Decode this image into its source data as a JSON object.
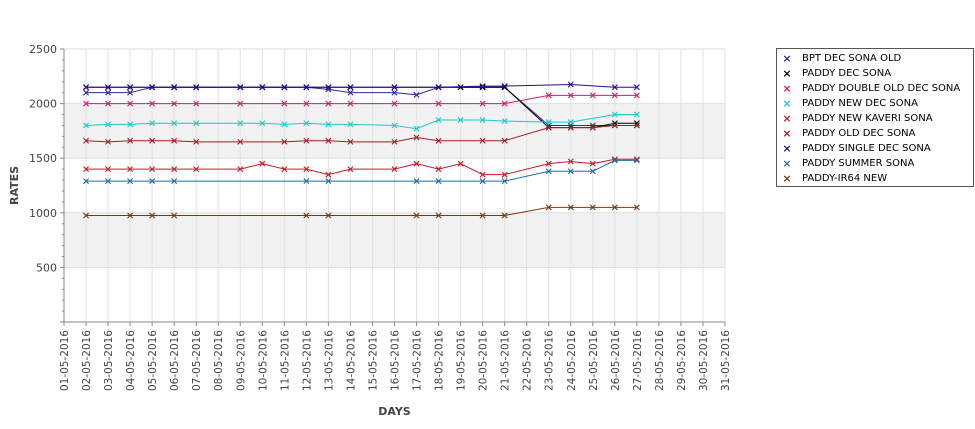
{
  "chart_data": {
    "type": "line",
    "xlabel": "DAYS",
    "ylabel": "RATES",
    "ylim": [
      0,
      2500
    ],
    "y_ticks": [
      500,
      1000,
      1500,
      2000,
      2500
    ],
    "grid": true,
    "legend_position": "right",
    "categories": [
      "01-05-2016",
      "02-05-2016",
      "03-05-2016",
      "04-05-2016",
      "05-05-2016",
      "06-05-2016",
      "07-05-2016",
      "08-05-2016",
      "09-05-2016",
      "10-05-2016",
      "11-05-2016",
      "12-05-2016",
      "13-05-2016",
      "14-05-2016",
      "15-05-2016",
      "16-05-2016",
      "17-05-2016",
      "18-05-2016",
      "19-05-2016",
      "20-05-2016",
      "21-05-2016",
      "22-05-2016",
      "23-05-2016",
      "24-05-2016",
      "25-05-2016",
      "26-05-2016",
      "27-05-2016",
      "28-05-2016",
      "29-05-2016",
      "30-05-2016",
      "31-05-2016"
    ],
    "series": [
      {
        "name": "BPT DEC SONA OLD",
        "color": "#2b2b9b",
        "points": [
          [
            "02-05-2016",
            2100
          ],
          [
            "03-05-2016",
            2100
          ],
          [
            "04-05-2016",
            2100
          ],
          [
            "05-05-2016",
            2150
          ],
          [
            "06-05-2016",
            2150
          ],
          [
            "07-05-2016",
            2150
          ],
          [
            "09-05-2016",
            2150
          ],
          [
            "10-05-2016",
            2150
          ],
          [
            "11-05-2016",
            2150
          ],
          [
            "12-05-2016",
            2150
          ],
          [
            "13-05-2016",
            2130
          ],
          [
            "14-05-2016",
            2100
          ],
          [
            "16-05-2016",
            2100
          ],
          [
            "17-05-2016",
            2080
          ],
          [
            "18-05-2016",
            2150
          ],
          [
            "19-05-2016",
            2150
          ],
          [
            "20-05-2016",
            2150
          ],
          [
            "21-05-2016",
            2150
          ],
          [
            "23-05-2016",
            1800
          ],
          [
            "24-05-2016",
            1800
          ],
          [
            "25-05-2016",
            1800
          ],
          [
            "26-05-2016",
            1800
          ],
          [
            "27-05-2016",
            1800
          ]
        ]
      },
      {
        "name": "PADDY DEC SONA",
        "color": "#000000",
        "points": [
          [
            "02-05-2016",
            2150
          ],
          [
            "03-05-2016",
            2150
          ],
          [
            "04-05-2016",
            2150
          ],
          [
            "05-05-2016",
            2150
          ],
          [
            "06-05-2016",
            2150
          ],
          [
            "07-05-2016",
            2150
          ],
          [
            "09-05-2016",
            2150
          ],
          [
            "10-05-2016",
            2150
          ],
          [
            "11-05-2016",
            2150
          ],
          [
            "12-05-2016",
            2150
          ],
          [
            "13-05-2016",
            2150
          ],
          [
            "14-05-2016",
            2150
          ],
          [
            "16-05-2016",
            2150
          ],
          [
            "18-05-2016",
            2150
          ],
          [
            "19-05-2016",
            2150
          ],
          [
            "20-05-2016",
            2150
          ],
          [
            "21-05-2016",
            2150
          ],
          [
            "23-05-2016",
            1780
          ],
          [
            "24-05-2016",
            1780
          ],
          [
            "25-05-2016",
            1780
          ],
          [
            "26-05-2016",
            1820
          ],
          [
            "27-05-2016",
            1820
          ]
        ]
      },
      {
        "name": "PADDY DOUBLE OLD DEC SONA",
        "color": "#d61a6f",
        "points": [
          [
            "02-05-2016",
            2000
          ],
          [
            "03-05-2016",
            2000
          ],
          [
            "04-05-2016",
            2000
          ],
          [
            "05-05-2016",
            2000
          ],
          [
            "06-05-2016",
            2000
          ],
          [
            "07-05-2016",
            2000
          ],
          [
            "09-05-2016",
            2000
          ],
          [
            "11-05-2016",
            2000
          ],
          [
            "12-05-2016",
            2000
          ],
          [
            "13-05-2016",
            2000
          ],
          [
            "14-05-2016",
            2000
          ],
          [
            "16-05-2016",
            2000
          ],
          [
            "18-05-2016",
            2000
          ],
          [
            "20-05-2016",
            2000
          ],
          [
            "21-05-2016",
            2000
          ],
          [
            "23-05-2016",
            2075
          ],
          [
            "24-05-2016",
            2075
          ],
          [
            "25-05-2016",
            2075
          ],
          [
            "26-05-2016",
            2075
          ],
          [
            "27-05-2016",
            2075
          ]
        ]
      },
      {
        "name": "PADDY NEW DEC SONA",
        "color": "#1fc8c8",
        "points": [
          [
            "02-05-2016",
            1800
          ],
          [
            "03-05-2016",
            1810
          ],
          [
            "04-05-2016",
            1810
          ],
          [
            "05-05-2016",
            1820
          ],
          [
            "06-05-2016",
            1820
          ],
          [
            "07-05-2016",
            1820
          ],
          [
            "09-05-2016",
            1820
          ],
          [
            "10-05-2016",
            1820
          ],
          [
            "11-05-2016",
            1810
          ],
          [
            "12-05-2016",
            1820
          ],
          [
            "13-05-2016",
            1810
          ],
          [
            "14-05-2016",
            1810
          ],
          [
            "16-05-2016",
            1800
          ],
          [
            "17-05-2016",
            1770
          ],
          [
            "18-05-2016",
            1850
          ],
          [
            "19-05-2016",
            1850
          ],
          [
            "20-05-2016",
            1850
          ],
          [
            "21-05-2016",
            1840
          ],
          [
            "23-05-2016",
            1830
          ],
          [
            "24-05-2016",
            1830
          ],
          [
            "26-05-2016",
            1900
          ],
          [
            "27-05-2016",
            1900
          ]
        ]
      },
      {
        "name": "PADDY NEW KAVERI SONA",
        "color": "#c81a2a",
        "points": [
          [
            "02-05-2016",
            1400
          ],
          [
            "03-05-2016",
            1400
          ],
          [
            "04-05-2016",
            1400
          ],
          [
            "05-05-2016",
            1400
          ],
          [
            "06-05-2016",
            1400
          ],
          [
            "07-05-2016",
            1400
          ],
          [
            "09-05-2016",
            1400
          ],
          [
            "10-05-2016",
            1450
          ],
          [
            "11-05-2016",
            1400
          ],
          [
            "12-05-2016",
            1400
          ],
          [
            "13-05-2016",
            1350
          ],
          [
            "14-05-2016",
            1400
          ],
          [
            "16-05-2016",
            1400
          ],
          [
            "17-05-2016",
            1450
          ],
          [
            "18-05-2016",
            1400
          ],
          [
            "19-05-2016",
            1450
          ],
          [
            "20-05-2016",
            1350
          ],
          [
            "21-05-2016",
            1350
          ],
          [
            "23-05-2016",
            1450
          ],
          [
            "24-05-2016",
            1470
          ],
          [
            "25-05-2016",
            1450
          ],
          [
            "26-05-2016",
            1490
          ],
          [
            "27-05-2016",
            1490
          ]
        ]
      },
      {
        "name": "PADDY OLD DEC SONA",
        "color": "#a31d22",
        "points": [
          [
            "02-05-2016",
            1660
          ],
          [
            "03-05-2016",
            1650
          ],
          [
            "04-05-2016",
            1660
          ],
          [
            "05-05-2016",
            1660
          ],
          [
            "06-05-2016",
            1660
          ],
          [
            "07-05-2016",
            1650
          ],
          [
            "09-05-2016",
            1650
          ],
          [
            "11-05-2016",
            1650
          ],
          [
            "12-05-2016",
            1660
          ],
          [
            "13-05-2016",
            1660
          ],
          [
            "14-05-2016",
            1650
          ],
          [
            "16-05-2016",
            1650
          ],
          [
            "17-05-2016",
            1690
          ],
          [
            "18-05-2016",
            1660
          ],
          [
            "20-05-2016",
            1660
          ],
          [
            "21-05-2016",
            1660
          ],
          [
            "23-05-2016",
            1780
          ],
          [
            "24-05-2016",
            1780
          ],
          [
            "25-05-2016",
            1780
          ],
          [
            "26-05-2016",
            1800
          ],
          [
            "27-05-2016",
            1800
          ]
        ]
      },
      {
        "name": "PADDY SINGLE DEC SONA",
        "color": "#2a0a8f",
        "points": [
          [
            "02-05-2016",
            2150
          ],
          [
            "03-05-2016",
            2150
          ],
          [
            "04-05-2016",
            2150
          ],
          [
            "05-05-2016",
            2150
          ],
          [
            "06-05-2016",
            2150
          ],
          [
            "07-05-2016",
            2150
          ],
          [
            "09-05-2016",
            2150
          ],
          [
            "10-05-2016",
            2150
          ],
          [
            "11-05-2016",
            2150
          ],
          [
            "12-05-2016",
            2150
          ],
          [
            "13-05-2016",
            2150
          ],
          [
            "14-05-2016",
            2150
          ],
          [
            "16-05-2016",
            2150
          ],
          [
            "18-05-2016",
            2150
          ],
          [
            "20-05-2016",
            2160
          ],
          [
            "21-05-2016",
            2160
          ],
          [
            "24-05-2016",
            2175
          ],
          [
            "26-05-2016",
            2150
          ],
          [
            "27-05-2016",
            2150
          ]
        ]
      },
      {
        "name": "PADDY SUMMER SONA",
        "color": "#1f6e96",
        "points": [
          [
            "02-05-2016",
            1290
          ],
          [
            "03-05-2016",
            1290
          ],
          [
            "04-05-2016",
            1290
          ],
          [
            "05-05-2016",
            1290
          ],
          [
            "06-05-2016",
            1290
          ],
          [
            "12-05-2016",
            1290
          ],
          [
            "13-05-2016",
            1290
          ],
          [
            "17-05-2016",
            1290
          ],
          [
            "18-05-2016",
            1290
          ],
          [
            "20-05-2016",
            1290
          ],
          [
            "21-05-2016",
            1290
          ],
          [
            "23-05-2016",
            1380
          ],
          [
            "24-05-2016",
            1380
          ],
          [
            "25-05-2016",
            1380
          ],
          [
            "26-05-2016",
            1480
          ],
          [
            "27-05-2016",
            1480
          ]
        ]
      },
      {
        "name": "PADDY-IR64 NEW",
        "color": "#7a3a10",
        "points": [
          [
            "02-05-2016",
            975
          ],
          [
            "04-05-2016",
            975
          ],
          [
            "05-05-2016",
            975
          ],
          [
            "06-05-2016",
            975
          ],
          [
            "12-05-2016",
            975
          ],
          [
            "13-05-2016",
            975
          ],
          [
            "17-05-2016",
            975
          ],
          [
            "18-05-2016",
            975
          ],
          [
            "20-05-2016",
            975
          ],
          [
            "21-05-2016",
            975
          ],
          [
            "23-05-2016",
            1050
          ],
          [
            "24-05-2016",
            1050
          ],
          [
            "25-05-2016",
            1050
          ],
          [
            "26-05-2016",
            1050
          ],
          [
            "27-05-2016",
            1050
          ]
        ]
      }
    ]
  }
}
